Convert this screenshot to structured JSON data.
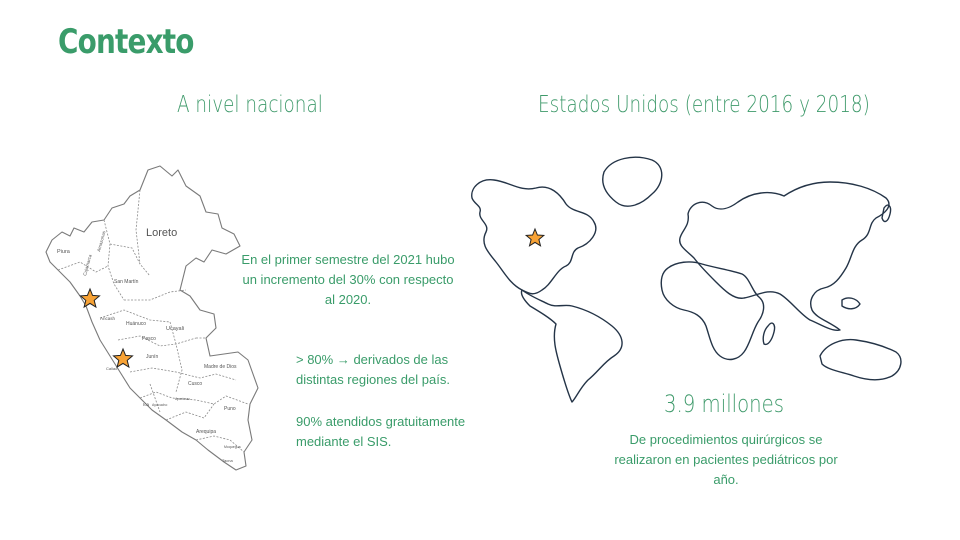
{
  "slide": {
    "title": "Contexto",
    "left": {
      "heading": "A nivel nacional",
      "paragraph1": "En el primer semestre del 2021 hubo un incremento del 30% con respecto al 2020.",
      "paragraph2": "> 80% → derivados de las distintas regiones del país.",
      "paragraph3": "90% atendidos gratuitamente mediante el SIS.",
      "map_labels": {
        "loreto": "Loreto",
        "piura": "Piura",
        "amazonas": "Amazonas",
        "cajamarca": "Cajamarca",
        "san_martin": "San Martín",
        "ancash": "Ancash",
        "huanuco": "Huánuco",
        "pasco": "Pasco",
        "ucayali": "Ucayali",
        "junin": "Junín",
        "callao": "Callao",
        "madre_de_dios": "Madre de Dios",
        "cusco": "Cusco",
        "ica": "Ica",
        "ayacucho": "Ayacucho",
        "apurimac": "Apurímac",
        "puno": "Puno",
        "arequipa": "Arequipa",
        "moquegua": "Moquegua",
        "tacna": "Tacna"
      }
    },
    "right": {
      "heading": "Estados Unidos (entre 2016 y 2018)",
      "stat": "3.9 millones",
      "description": "De procedimientos quirúrgicos se realizaron en pacientes pediátricos por año."
    },
    "colors": {
      "accent": "#3a9c6a",
      "star_fill": "#f7a235",
      "outline": "#243447"
    }
  }
}
